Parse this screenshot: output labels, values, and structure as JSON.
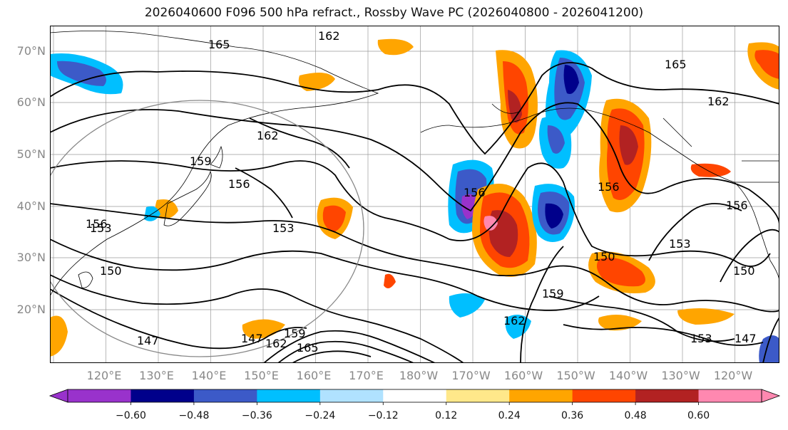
{
  "title": "2026040600 F096 500 hPa refract., Rossby Wave PC (2026040800 - 2026041200)",
  "lat_labels": [
    "70°N",
    "60°N",
    "50°N",
    "40°N",
    "30°N",
    "20°N"
  ],
  "lat_values": [
    70,
    60,
    50,
    40,
    30,
    20
  ],
  "lon_labels": [
    "120°E",
    "130°E",
    "140°E",
    "150°E",
    "160°E",
    "170°E",
    "180°W",
    "170°W",
    "160°W",
    "150°W",
    "140°W",
    "130°W",
    "120°W"
  ],
  "contour_labels": [
    "162",
    "165",
    "165",
    "162",
    "162",
    "159",
    "156",
    "153",
    "153",
    "150",
    "156",
    "156",
    "156",
    "153",
    "150",
    "159",
    "162",
    "150",
    "153",
    "147",
    "147",
    "159",
    "162",
    "165",
    "147",
    "156"
  ],
  "colorbar": {
    "tick_labels": [
      "−0.60",
      "−0.48",
      "−0.36",
      "−0.24",
      "−0.12",
      "0.12",
      "0.24",
      "0.36",
      "0.48",
      "0.60"
    ],
    "colors": [
      "#9932cc",
      "#00008b",
      "#3c5ac8",
      "#00bfff",
      "#b0e2ff",
      "#ffffff",
      "#ffe88a",
      "#ffa500",
      "#ff4500",
      "#b22222",
      "#ff88b0"
    ]
  }
}
